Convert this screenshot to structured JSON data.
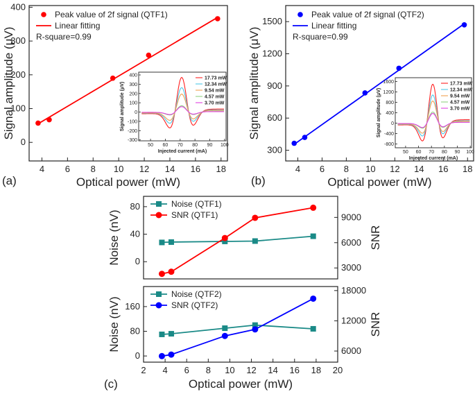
{
  "chart_data": [
    {
      "id": "a",
      "type": "scatter",
      "panel_label": "(a)",
      "xlabel": "Optical power (mW)",
      "ylabel": "Signal amplitude (μV)",
      "xlim": [
        3,
        18.5
      ],
      "ylim": [
        -55,
        405
      ],
      "xticks": [
        4,
        6,
        8,
        10,
        12,
        14,
        16,
        18
      ],
      "yticks": [
        0,
        100,
        200,
        300,
        400
      ],
      "points": {
        "x": [
          3.7,
          4.57,
          9.54,
          12.34,
          17.73
        ],
        "y": [
          57,
          67,
          190,
          258,
          366
        ],
        "color": "#ff0000"
      },
      "fit": {
        "x": [
          3.7,
          17.73
        ],
        "y": [
          55,
          370
        ],
        "color": "#ff0000"
      },
      "legend": {
        "points": "Peak value of 2f signal (QTF1)",
        "line": "Linear fitting"
      },
      "annotation": "R-square=0.99",
      "inset": {
        "xlabel": "Injected current (mA)",
        "ylabel": "Signal amplitude (μV)",
        "xlim": [
          42,
          101
        ],
        "ylim": [
          -310,
          430
        ],
        "xticks": [
          50,
          60,
          70,
          80,
          90,
          100
        ],
        "yticks": [
          -300,
          -200,
          -100,
          0,
          100,
          200,
          300,
          400
        ],
        "series": [
          {
            "name": "17.73 mW",
            "amp": 366,
            "color": "#ff2020"
          },
          {
            "name": "12.34 mW",
            "amp": 258,
            "color": "#4fc8e8"
          },
          {
            "name": "9.54 mW",
            "amp": 190,
            "color": "#f0a050"
          },
          {
            "name": "4.57 mW",
            "amp": 67,
            "color": "#8fd080"
          },
          {
            "name": "3.70 mW",
            "amp": 57,
            "color": "#e040e0"
          }
        ]
      }
    },
    {
      "id": "b",
      "type": "scatter",
      "panel_label": "(b)",
      "xlabel": "Optical power (mW)",
      "ylabel": "Signal amplitude (μV)",
      "xlim": [
        3,
        18.5
      ],
      "ylim": [
        200,
        1650
      ],
      "xticks": [
        4,
        6,
        8,
        10,
        12,
        14,
        16,
        18
      ],
      "yticks": [
        300,
        600,
        900,
        1200,
        1500
      ],
      "points": {
        "x": [
          3.7,
          4.57,
          9.54,
          12.34,
          17.73
        ],
        "y": [
          365,
          420,
          835,
          1065,
          1470
        ],
        "color": "#0000ff"
      },
      "fit": {
        "x": [
          3.7,
          17.73
        ],
        "y": [
          355,
          1480
        ],
        "color": "#0000ff"
      },
      "legend": {
        "points": "Peak value of 2f signal (QTF2)",
        "line": "Linear fitting"
      },
      "annotation": "R-square=0.99",
      "inset": {
        "xlabel": "Injected current (mA)",
        "ylabel": "Signal amplitude (μV)",
        "xlim": [
          42,
          101
        ],
        "ylim": [
          -950,
          1750
        ],
        "xticks": [
          50,
          60,
          70,
          80,
          90,
          100
        ],
        "yticks": [
          -800,
          -400,
          0,
          400,
          800,
          1200,
          1600
        ],
        "series": [
          {
            "name": "17.73 mW",
            "amp": 1470,
            "color": "#ff2020"
          },
          {
            "name": "12.34 mW",
            "amp": 1065,
            "color": "#4fc8e8"
          },
          {
            "name": "9.54 mW",
            "amp": 835,
            "color": "#f0a050"
          },
          {
            "name": "4.57 mW",
            "amp": 420,
            "color": "#8fd080"
          },
          {
            "name": "3.70 mW",
            "amp": 365,
            "color": "#e040e0"
          }
        ]
      }
    },
    {
      "id": "c1",
      "type": "line",
      "xlim": [
        2,
        20
      ],
      "ylabel_left": "Noise (nV)",
      "ylabel_right": "SNR",
      "ylim_left": [
        -25,
        95
      ],
      "ylim_right": [
        1700,
        11500
      ],
      "yticks_left": [
        0,
        40,
        80
      ],
      "yticks_right": [
        3000,
        6000,
        9000
      ],
      "series": [
        {
          "name": "Noise (QTF1)",
          "axis": "left",
          "marker": "square",
          "color": "#1a8a87",
          "x": [
            3.7,
            4.57,
            9.54,
            12.34,
            17.73
          ],
          "y": [
            28,
            28.5,
            29.5,
            30,
            37
          ]
        },
        {
          "name": "SNR (QTF1)",
          "axis": "right",
          "marker": "circle",
          "color": "#ff0000",
          "x": [
            3.7,
            4.57,
            9.54,
            12.34,
            17.73
          ],
          "y": [
            2300,
            2550,
            6550,
            8950,
            10150
          ]
        }
      ]
    },
    {
      "id": "c2",
      "type": "line",
      "panel_label": "(c)",
      "xlabel": "Optical power (mW)",
      "xlim": [
        2,
        20
      ],
      "xticks": [
        2,
        4,
        6,
        8,
        10,
        12,
        14,
        16,
        18,
        20
      ],
      "ylabel_left": "Noise (nV)",
      "ylabel_right": "SNR",
      "ylim_left": [
        -20,
        225
      ],
      "ylim_right": [
        3800,
        18800
      ],
      "yticks_left": [
        0,
        80,
        160
      ],
      "yticks_right": [
        6000,
        12000,
        18000
      ],
      "series": [
        {
          "name": "Noise (QTF2)",
          "axis": "left",
          "marker": "square",
          "color": "#1a8a87",
          "x": [
            3.7,
            4.57,
            9.54,
            12.34,
            17.73
          ],
          "y": [
            70,
            72,
            90,
            100,
            88
          ]
        },
        {
          "name": "SNR (QTF2)",
          "axis": "right",
          "marker": "circle",
          "color": "#0000ff",
          "x": [
            3.7,
            4.57,
            9.54,
            12.34,
            17.73
          ],
          "y": [
            5000,
            5300,
            9000,
            10300,
            16400
          ]
        }
      ]
    }
  ]
}
